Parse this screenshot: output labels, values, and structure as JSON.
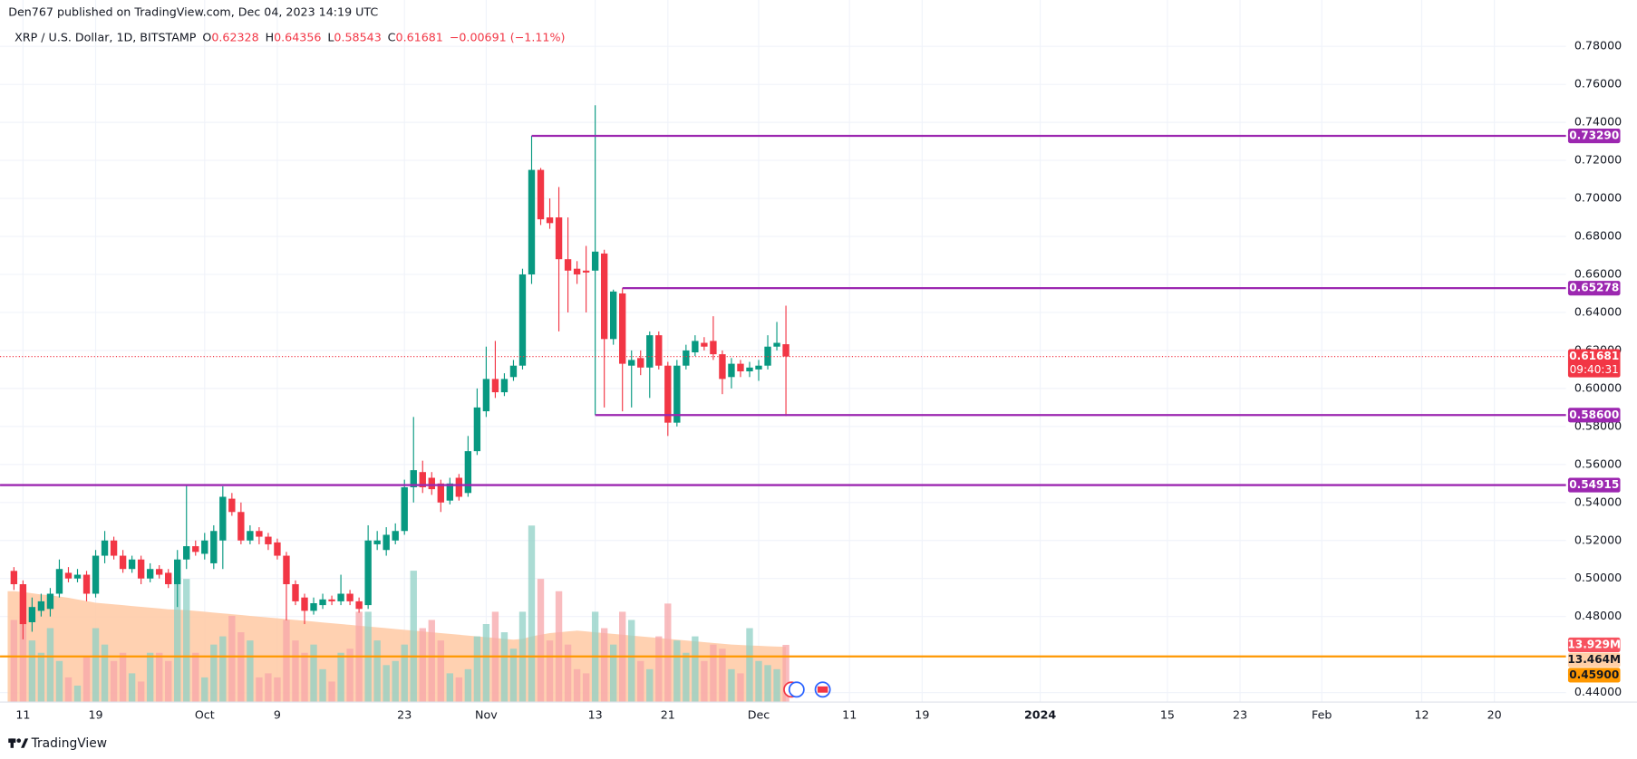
{
  "header": "Den767 published on TradingView.com, Dec 04, 2023 14:19 UTC",
  "footer": "TradingView",
  "chart_data": {
    "type": "candlestick",
    "symbol": "XRP / U.S. Dollar, 1D, BITSTAMP",
    "legend_labels": {
      "open": "O",
      "high": "H",
      "low": "L",
      "close": "C"
    },
    "change": "−0.00691 (−1.11%)",
    "countdown": "09:40:31",
    "categories": [
      null,
      "11",
      null,
      null,
      null,
      null,
      null,
      null,
      null,
      "19",
      null,
      null,
      null,
      null,
      null,
      null,
      null,
      null,
      null,
      null,
      null,
      "Oct",
      null,
      null,
      null,
      null,
      null,
      null,
      null,
      "9",
      null,
      null,
      null,
      null,
      null,
      null,
      null,
      null,
      null,
      null,
      null,
      null,
      null,
      "23",
      null,
      null,
      null,
      null,
      null,
      null,
      null,
      null,
      "Nov",
      null,
      null,
      null,
      null,
      null,
      null,
      null,
      null,
      null,
      null,
      null,
      "13",
      null,
      null,
      null,
      null,
      null,
      null,
      null,
      "21",
      null,
      null,
      null,
      null,
      null,
      null,
      null,
      null,
      null,
      "Dec",
      null,
      null,
      null,
      null,
      null,
      null,
      null,
      null,
      null,
      "11",
      null,
      null,
      null,
      null,
      null,
      null,
      null,
      "19",
      null,
      null,
      null,
      null,
      null,
      null,
      null,
      null,
      null,
      null,
      null,
      null,
      "2024",
      null,
      null,
      null,
      null,
      null,
      null,
      null,
      null,
      null,
      null,
      null,
      null,
      null,
      "15",
      null,
      null,
      null,
      null,
      null,
      null,
      null,
      "23",
      null,
      null,
      null,
      null,
      null,
      null,
      null,
      null,
      "Feb",
      null,
      null,
      null,
      null,
      null,
      null,
      null,
      null,
      null,
      null,
      "12",
      null,
      null,
      null,
      null,
      null,
      null,
      null,
      "20"
    ],
    "open": [
      0.504,
      0.497,
      0.477,
      0.483,
      0.484,
      0.492,
      0.503,
      0.5,
      0.502,
      0.492,
      0.512,
      0.52,
      0.512,
      0.505,
      0.51,
      0.5,
      0.505,
      0.503,
      0.497,
      0.51,
      0.517,
      0.513,
      0.508,
      0.52,
      0.542,
      0.535,
      0.52,
      0.525,
      0.522,
      0.519,
      0.512,
      0.497,
      0.49,
      0.483,
      0.486,
      0.489,
      0.488,
      0.492,
      0.488,
      0.486,
      0.518,
      0.515,
      0.52,
      0.525,
      0.548,
      0.556,
      0.553,
      0.55,
      0.541,
      0.553,
      0.545,
      0.567,
      0.588,
      0.605,
      0.598,
      0.606,
      0.612,
      0.66,
      0.715,
      0.69,
      0.69,
      0.668,
      0.663,
      0.662,
      0.662,
      0.671,
      0.626,
      0.65,
      0.612,
      0.616,
      0.611,
      0.628,
      0.612,
      0.582,
      0.612,
      0.619,
      0.624,
      0.625,
      0.618,
      0.606,
      0.613,
      0.609,
      0.61,
      0.612,
      0.622,
      0.62328,
      null,
      null,
      null,
      null,
      null,
      null,
      null,
      null,
      null,
      null,
      null,
      null,
      null,
      null,
      null,
      null,
      null,
      null,
      null,
      null,
      null,
      null,
      null,
      null,
      null,
      null,
      null,
      null,
      null,
      null,
      null,
      null,
      null,
      null,
      null,
      null,
      null,
      null,
      null,
      null,
      null,
      null,
      null,
      null,
      null,
      null,
      null,
      null,
      null,
      null,
      null,
      null,
      null,
      null,
      null,
      null,
      null,
      null,
      null,
      null,
      null,
      null,
      null,
      null,
      null,
      null,
      null,
      null,
      null,
      null,
      null,
      null,
      null,
      null,
      null,
      null,
      null,
      null
    ],
    "high": [
      0.506,
      0.499,
      0.49,
      0.492,
      0.495,
      0.51,
      0.506,
      0.505,
      0.504,
      0.515,
      0.525,
      0.522,
      0.515,
      0.512,
      0.512,
      0.508,
      0.507,
      0.505,
      0.515,
      0.549,
      0.52,
      0.524,
      0.528,
      0.5485,
      0.545,
      0.54,
      0.528,
      0.527,
      0.524,
      0.521,
      0.514,
      0.499,
      0.492,
      0.49,
      0.492,
      0.491,
      0.502,
      0.494,
      0.49,
      0.528,
      0.525,
      0.527,
      0.529,
      0.552,
      0.585,
      0.562,
      0.556,
      0.552,
      0.553,
      0.555,
      0.575,
      0.6,
      0.622,
      0.625,
      0.608,
      0.615,
      0.663,
      0.7329,
      0.716,
      0.7,
      0.706,
      0.69,
      0.667,
      0.675,
      0.749,
      0.673,
      0.652,
      0.65278,
      0.62,
      0.62,
      0.63,
      0.63,
      0.614,
      0.615,
      0.623,
      0.628,
      0.627,
      0.638,
      0.62,
      0.616,
      0.615,
      0.614,
      0.615,
      0.628,
      0.635,
      0.64356,
      null,
      null,
      null,
      null,
      null,
      null,
      null,
      null,
      null,
      null,
      null,
      null,
      null,
      null,
      null,
      null,
      null,
      null,
      null,
      null,
      null,
      null,
      null,
      null,
      null,
      null,
      null,
      null,
      null,
      null,
      null,
      null,
      null,
      null,
      null,
      null,
      null,
      null,
      null,
      null,
      null,
      null,
      null,
      null,
      null,
      null,
      null,
      null,
      null,
      null,
      null,
      null,
      null,
      null,
      null,
      null,
      null,
      null,
      null,
      null,
      null,
      null,
      null,
      null,
      null,
      null,
      null,
      null,
      null,
      null,
      null,
      null,
      null,
      null,
      null,
      null,
      null,
      null
    ],
    "low": [
      0.494,
      0.468,
      0.472,
      0.48,
      0.48,
      0.49,
      0.498,
      0.498,
      0.488,
      0.49,
      0.508,
      0.51,
      0.503,
      0.503,
      0.497,
      0.498,
      0.5,
      0.495,
      0.485,
      0.505,
      0.512,
      0.51,
      0.505,
      0.505,
      0.533,
      0.518,
      0.518,
      0.518,
      0.515,
      0.51,
      0.478,
      0.486,
      0.476,
      0.481,
      0.484,
      0.486,
      0.486,
      0.486,
      0.482,
      0.484,
      0.515,
      0.512,
      0.518,
      0.523,
      0.54,
      0.545,
      0.544,
      0.535,
      0.539,
      0.541,
      0.543,
      0.565,
      0.585,
      0.595,
      0.596,
      0.604,
      0.61,
      0.655,
      0.686,
      0.684,
      0.63,
      0.64,
      0.655,
      0.64,
      0.586,
      0.59,
      0.623,
      0.588,
      0.59,
      0.607,
      0.595,
      0.61,
      0.575,
      0.58,
      0.61,
      0.617,
      0.62,
      0.615,
      0.597,
      0.6,
      0.606,
      0.606,
      0.604,
      0.61,
      0.62,
      0.58543,
      null,
      null,
      null,
      null,
      null,
      null,
      null,
      null,
      null,
      null,
      null,
      null,
      null,
      null,
      null,
      null,
      null,
      null,
      null,
      null,
      null,
      null,
      null,
      null,
      null,
      null,
      null,
      null,
      null,
      null,
      null,
      null,
      null,
      null,
      null,
      null,
      null,
      null,
      null,
      null,
      null,
      null,
      null,
      null,
      null,
      null,
      null,
      null,
      null,
      null,
      null,
      null,
      null,
      null,
      null,
      null,
      null,
      null,
      null,
      null,
      null,
      null,
      null,
      null,
      null,
      null,
      null,
      null,
      null,
      null,
      null,
      null,
      null,
      null,
      null,
      null,
      null,
      null
    ],
    "close": [
      0.497,
      0.476,
      0.485,
      0.488,
      0.492,
      0.505,
      0.5,
      0.502,
      0.492,
      0.512,
      0.52,
      0.512,
      0.505,
      0.51,
      0.5,
      0.505,
      0.502,
      0.497,
      0.51,
      0.517,
      0.514,
      0.52,
      0.525,
      0.543,
      0.535,
      0.52,
      0.525,
      0.522,
      0.518,
      0.512,
      0.497,
      0.488,
      0.483,
      0.487,
      0.489,
      0.488,
      0.492,
      0.488,
      0.484,
      0.52,
      0.52,
      0.523,
      0.525,
      0.548,
      0.557,
      0.548,
      0.547,
      0.54,
      0.55,
      0.543,
      0.567,
      0.59,
      0.605,
      0.598,
      0.605,
      0.612,
      0.66,
      0.715,
      0.689,
      0.687,
      0.668,
      0.662,
      0.66,
      0.661,
      0.672,
      0.626,
      0.651,
      0.613,
      0.615,
      0.611,
      0.628,
      0.612,
      0.582,
      0.612,
      0.62,
      0.625,
      0.622,
      0.618,
      0.605,
      0.613,
      0.609,
      0.611,
      0.612,
      0.622,
      0.624,
      0.61681,
      null,
      null,
      null,
      null,
      null,
      null,
      null,
      null,
      null,
      null,
      null,
      null,
      null,
      null,
      null,
      null,
      null,
      null,
      null,
      null,
      null,
      null,
      null,
      null,
      null,
      null,
      null,
      null,
      null,
      null,
      null,
      null,
      null,
      null,
      null,
      null,
      null,
      null,
      null,
      null,
      null,
      null,
      null,
      null,
      null,
      null,
      null,
      null,
      null,
      null,
      null,
      null,
      null,
      null,
      null,
      null,
      null,
      null,
      null,
      null,
      null,
      null,
      null,
      null,
      null,
      null,
      null,
      null,
      null,
      null,
      null,
      null,
      null,
      null,
      null,
      null,
      null,
      null
    ],
    "volume": [
      20000000.0,
      28000000.0,
      15000000.0,
      12000000.0,
      18000000.0,
      10000000.0,
      6000000.0,
      4000000.0,
      11000000.0,
      18000000.0,
      14000000.0,
      10000000.0,
      12000000.0,
      7000000.0,
      5000000.0,
      12000000.0,
      12000000.0,
      10000000.0,
      30000000.0,
      30000000.0,
      12000000.0,
      6000000.0,
      14000000.0,
      16000000.0,
      21000000.0,
      17000000.0,
      15000000.0,
      6000000.0,
      7000000.0,
      6000000.0,
      20000000.0,
      15000000.0,
      12000000.0,
      14000000.0,
      8000000.0,
      5000000.0,
      12000000.0,
      13000000.0,
      22000000.0,
      22000000.0,
      15000000.0,
      9000000.0,
      10000000.0,
      14000000.0,
      32000000.0,
      18000000.0,
      20000000.0,
      15000000.0,
      7000000.0,
      6000000.0,
      8000000.0,
      16000000.0,
      19000000.0,
      22000000.0,
      17000000.0,
      13000000.0,
      22000000.0,
      43000000.0,
      30000000.0,
      15000000.0,
      27000000.0,
      14000000.0,
      8000000.0,
      7000000.0,
      22000000.0,
      18000000.0,
      14000000.0,
      22000000.0,
      20000000.0,
      10000000.0,
      8000000.0,
      16000000.0,
      24000000.0,
      15000000.0,
      12000000.0,
      16000000.0,
      10000000.0,
      14000000.0,
      13000000.0,
      8000000.0,
      7000000.0,
      18000000.0,
      10000000.0,
      9000000.0,
      8000000.0,
      13929000,
      null,
      null,
      null,
      null,
      null,
      null,
      null,
      null,
      null,
      null,
      null,
      null,
      null,
      null,
      null,
      null,
      null,
      null,
      null,
      null,
      null,
      null,
      null,
      null,
      null,
      null,
      null,
      null,
      null,
      null,
      null,
      null,
      null,
      null,
      null,
      null,
      null,
      null,
      null,
      null,
      null,
      null,
      null,
      null,
      null,
      null,
      null,
      null,
      null,
      null,
      null,
      null,
      null,
      null,
      null,
      null,
      null,
      null,
      null,
      null,
      null,
      null,
      null,
      null,
      null,
      null,
      null,
      null,
      null,
      null,
      null,
      null,
      null,
      null,
      null,
      null,
      null,
      null
    ],
    "volume_label": "13.929M",
    "volume_ma": [
      27000000.0,
      26800000.0,
      26500000.0,
      26200000.0,
      26000000.0,
      25700000.0,
      25400000.0,
      25000000.0,
      24600000.0,
      24200000.0,
      24000000.0,
      23800000.0,
      23600000.0,
      23400000.0,
      23200000.0,
      23000000.0,
      22800000.0,
      22600000.0,
      22500000.0,
      22400000.0,
      22200000.0,
      22000000.0,
      21800000.0,
      21600000.0,
      21400000.0,
      21200000.0,
      21000000.0,
      20800000.0,
      20600000.0,
      20400000.0,
      20200000.0,
      20000000.0,
      19800000.0,
      19600000.0,
      19400000.0,
      19200000.0,
      19000000.0,
      18800000.0,
      18600000.0,
      18400000.0,
      18200000.0,
      18000000.0,
      17800000.0,
      17600000.0,
      17400000.0,
      17200000.0,
      17000000.0,
      16800000.0,
      16600000.0,
      16400000.0,
      16200000.0,
      16000000.0,
      15800000.0,
      15600000.0,
      15400000.0,
      15200000.0,
      15400000.0,
      16000000.0,
      16400000.0,
      16800000.0,
      17000000.0,
      17200000.0,
      17400000.0,
      17200000.0,
      17000000.0,
      16800000.0,
      16600000.0,
      16400000.0,
      16200000.0,
      16000000.0,
      15800000.0,
      15600000.0,
      15400000.0,
      15200000.0,
      15000000.0,
      14800000.0,
      14600000.0,
      14400000.0,
      14200000.0,
      14000000.0,
      13900000.0,
      13800000.0,
      13700000.0,
      13600000.0,
      13500000.0,
      13464000,
      null,
      null,
      null,
      null,
      null,
      null,
      null,
      null,
      null,
      null,
      null,
      null,
      null,
      null,
      null,
      null,
      null,
      null,
      null,
      null,
      null,
      null,
      null,
      null,
      null,
      null,
      null,
      null,
      null,
      null,
      null,
      null,
      null,
      null,
      null,
      null,
      null,
      null,
      null,
      null,
      null,
      null,
      null,
      null,
      null,
      null,
      null,
      null,
      null,
      null,
      null,
      null,
      null,
      null,
      null,
      null,
      null,
      null,
      null,
      null,
      null,
      null,
      null,
      null,
      null,
      null,
      null,
      null,
      null,
      null,
      null,
      null,
      null,
      null,
      null,
      null,
      null,
      null
    ],
    "volume_ma_label": "13.464M",
    "up_color": "#089981",
    "down_color": "#f23645",
    "volume_up_color": "#8fd0c6",
    "volume_down_color": "#f7a6a9",
    "volume_ma_color": "#ffc9a3",
    "ylim": [
      0.435,
      0.8
    ],
    "yticks": [
      {
        "value": 0.44,
        "label": "0.44000"
      },
      {
        "value": 0.48,
        "label": "0.48000"
      },
      {
        "value": 0.5,
        "label": "0.50000"
      },
      {
        "value": 0.52,
        "label": "0.52000"
      },
      {
        "value": 0.54,
        "label": "0.54000"
      },
      {
        "value": 0.56,
        "label": "0.56000"
      },
      {
        "value": 0.58,
        "label": "0.58000"
      },
      {
        "value": 0.6,
        "label": "0.60000"
      },
      {
        "value": 0.62,
        "label": "0.62000"
      },
      {
        "value": 0.64,
        "label": "0.64000"
      },
      {
        "value": 0.66,
        "label": "0.66000"
      },
      {
        "value": 0.68,
        "label": "0.68000"
      },
      {
        "value": 0.7,
        "label": "0.70000"
      },
      {
        "value": 0.72,
        "label": "0.72000"
      },
      {
        "value": 0.74,
        "label": "0.74000"
      },
      {
        "value": 0.76,
        "label": "0.76000"
      },
      {
        "value": 0.78,
        "label": "0.78000"
      }
    ],
    "y2lim": [
      0,
      169000000
    ],
    "grid": true,
    "level_color": "#9c27b0",
    "levels": [
      {
        "value": 0.7329,
        "label": "0.73290"
      },
      {
        "value": 0.65278,
        "label": "0.65278"
      },
      {
        "value": 0.586,
        "label": "0.58600"
      },
      {
        "value": 0.54915,
        "label": "0.54915"
      }
    ],
    "alert_line": {
      "value": 0.459,
      "label": "0.45900",
      "color": "#ff9800"
    }
  }
}
